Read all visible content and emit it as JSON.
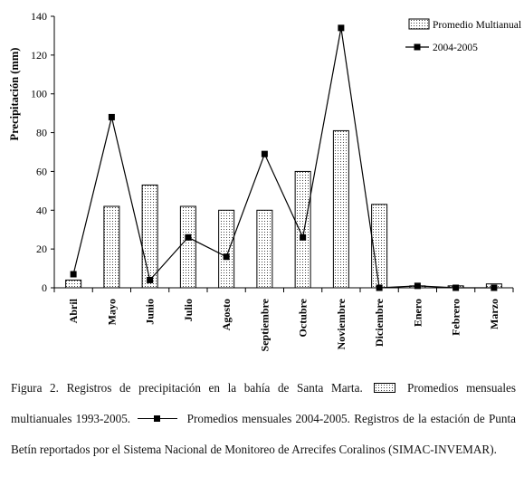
{
  "chart_data": {
    "type": "bar",
    "categories": [
      "Abril",
      "Mayo",
      "Junio",
      "Julio",
      "Agosto",
      "Septiembre",
      "Octubre",
      "Noviembre",
      "Diciembre",
      "Enero",
      "Febrero",
      "Marzo"
    ],
    "series": [
      {
        "name": "Promedio Multianual",
        "type": "bar",
        "values": [
          4,
          42,
          53,
          42,
          40,
          40,
          60,
          81,
          43,
          1,
          1,
          2
        ]
      },
      {
        "name": "2004-2005",
        "type": "line",
        "values": [
          7,
          88,
          4,
          26,
          16,
          69,
          26,
          134,
          0,
          1,
          0,
          0
        ]
      }
    ],
    "ylabel": "Precipitación (mm)",
    "xlabel": "",
    "ylim": [
      0,
      140
    ],
    "yticks": [
      "0",
      "20",
      "40",
      "60",
      "80",
      "100",
      "120",
      "140"
    ],
    "legend_position": "top-right",
    "grid": false,
    "colors": {
      "bar_pattern": "#444444",
      "line": "#000000",
      "marker": "#000000",
      "axis": "#000000"
    }
  },
  "caption": {
    "part1": "Figura 2. Registros de precipitación en la bahía de Santa Marta.",
    "part2": "Promedios mensuales multianuales 1993-2005.",
    "part3": "Promedios mensuales 2004-2005. Registros de la estación de Punta Betín reportados por el Sistema Nacional de Monitoreo de Arrecifes Coralinos (SIMAC-INVEMAR)."
  }
}
